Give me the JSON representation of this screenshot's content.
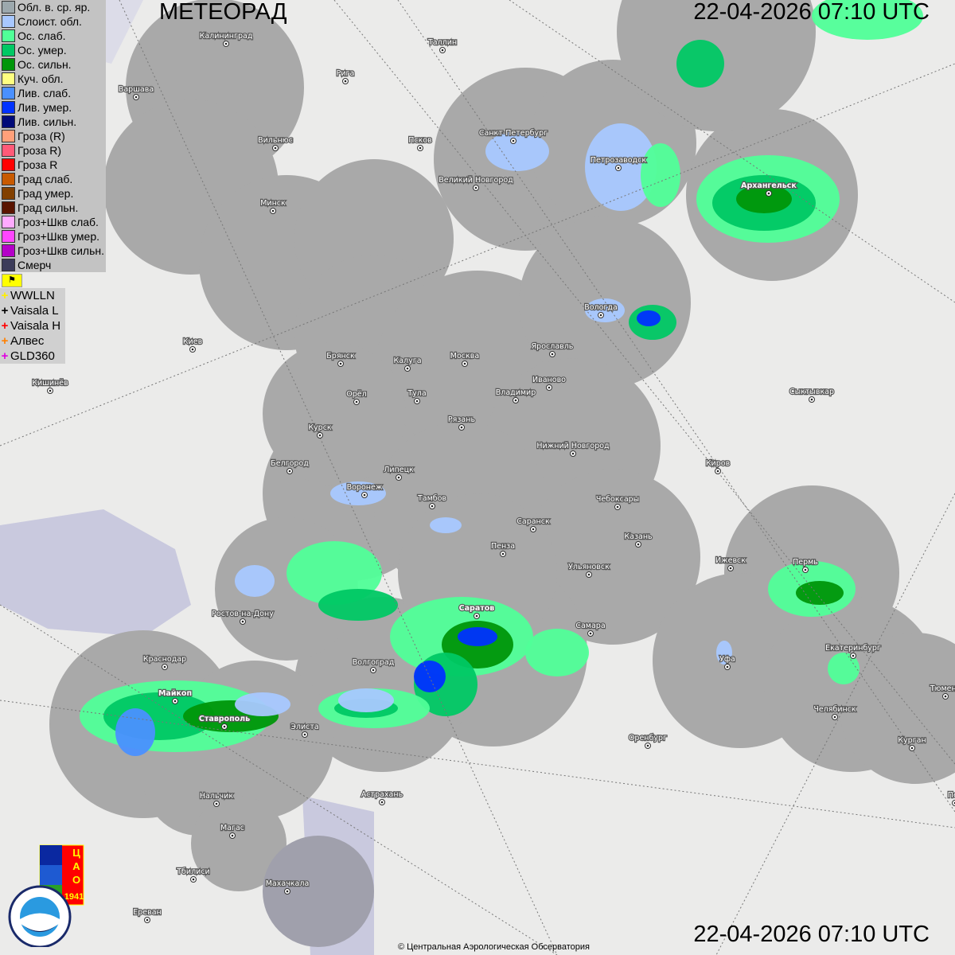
{
  "header": {
    "title": "МЕТЕОРАД",
    "timestamp_top": "22-04-2026  07:10 UTC",
    "timestamp_bottom": "22-04-2026  07:10 UTC"
  },
  "legend": {
    "items": [
      {
        "label": "Обл. в. ср. яр.",
        "color": "#9ca8ad"
      },
      {
        "label": "Слоист. обл.",
        "color": "#a8c8ff"
      },
      {
        "label": "Ос. слаб.",
        "color": "#50ff98"
      },
      {
        "label": "Ос. умер.",
        "color": "#00c864"
      },
      {
        "label": "Ос. сильн.",
        "color": "#00960a"
      },
      {
        "label": "Куч. обл.",
        "color": "#ffff80"
      },
      {
        "label": "Лив. слаб.",
        "color": "#4a90ff"
      },
      {
        "label": "Лив. умер.",
        "color": "#0032ff"
      },
      {
        "label": "Лив. сильн.",
        "color": "#000a78"
      },
      {
        "label": "Гроза (R)",
        "color": "#ffa07a"
      },
      {
        "label": "Гроза R)",
        "color": "#ff5a78"
      },
      {
        "label": "Гроза R",
        "color": "#ff0000"
      },
      {
        "label": "Град слаб.",
        "color": "#c85a00"
      },
      {
        "label": "Град умер.",
        "color": "#824000"
      },
      {
        "label": "Град сильн.",
        "color": "#5a1400"
      },
      {
        "label": "Гроз+Шкв слаб.",
        "color": "#ffaaff"
      },
      {
        "label": "Гроз+Шкв умер.",
        "color": "#ff46ff"
      },
      {
        "label": "Гроз+Шкв сильн.",
        "color": "#b400c8"
      },
      {
        "label": "Смерч",
        "color": "#3c3c5a"
      }
    ],
    "flag_button": "⚑"
  },
  "lightning": {
    "items": [
      {
        "label": "WWLLN",
        "color": "#ffee00"
      },
      {
        "label": "Vaisala L",
        "color": "#000000"
      },
      {
        "label": "Vaisala H",
        "color": "#ff0000"
      },
      {
        "label": "Алвес",
        "color": "#ff8000"
      },
      {
        "label": "GLD360",
        "color": "#e000e0"
      }
    ]
  },
  "cities": [
    {
      "name": "Калининград",
      "big": false
    },
    {
      "name": "Рига",
      "big": false
    },
    {
      "name": "Таллин",
      "big": false
    },
    {
      "name": "Варшава",
      "big": false
    },
    {
      "name": "Вильнюс",
      "big": false
    },
    {
      "name": "Псков",
      "big": false
    },
    {
      "name": "Санкт-Петербург",
      "big": false
    },
    {
      "name": "Петрозаводск",
      "big": false
    },
    {
      "name": "Архангельск",
      "big": true
    },
    {
      "name": "Великий Новгород",
      "big": false
    },
    {
      "name": "Минск",
      "big": false
    },
    {
      "name": "Вологда",
      "big": false
    },
    {
      "name": "Ярославль",
      "big": false
    },
    {
      "name": "Москва",
      "big": false
    },
    {
      "name": "Калуга",
      "big": false
    },
    {
      "name": "Брянск",
      "big": false
    },
    {
      "name": "Киев",
      "big": false
    },
    {
      "name": "Иваново",
      "big": false
    },
    {
      "name": "Владимир",
      "big": false
    },
    {
      "name": "Тула",
      "big": false
    },
    {
      "name": "Орёл",
      "big": false
    },
    {
      "name": "Кишинёв",
      "big": false
    },
    {
      "name": "Сыктывкар",
      "big": false
    },
    {
      "name": "Рязань",
      "big": false
    },
    {
      "name": "Курск",
      "big": false
    },
    {
      "name": "Нижний Новгород",
      "big": false
    },
    {
      "name": "Белгород",
      "big": false
    },
    {
      "name": "Липецк",
      "big": false
    },
    {
      "name": "Киров",
      "big": false
    },
    {
      "name": "Воронеж",
      "big": false
    },
    {
      "name": "Тамбов",
      "big": false
    },
    {
      "name": "Чебоксары",
      "big": false
    },
    {
      "name": "Саранск",
      "big": false
    },
    {
      "name": "Казань",
      "big": false
    },
    {
      "name": "Пенза",
      "big": false
    },
    {
      "name": "Ижевск",
      "big": false
    },
    {
      "name": "Пермь",
      "big": false
    },
    {
      "name": "Ульяновск",
      "big": false
    },
    {
      "name": "Ростов-на-Дону",
      "big": false
    },
    {
      "name": "Саратов",
      "big": true
    },
    {
      "name": "Самара",
      "big": false
    },
    {
      "name": "Краснодар",
      "big": false
    },
    {
      "name": "Уфа",
      "big": false
    },
    {
      "name": "Волгоград",
      "big": false
    },
    {
      "name": "Екатеринбург",
      "big": false
    },
    {
      "name": "Тюмень",
      "big": false
    },
    {
      "name": "Майкоп",
      "big": true
    },
    {
      "name": "Челябинск",
      "big": false
    },
    {
      "name": "Ставрополь",
      "big": true
    },
    {
      "name": "Элиста",
      "big": false
    },
    {
      "name": "Оренбург",
      "big": false
    },
    {
      "name": "Курган",
      "big": false
    },
    {
      "name": "Пет",
      "big": false
    },
    {
      "name": "Нальчик",
      "big": false
    },
    {
      "name": "Астрахань",
      "big": false
    },
    {
      "name": "Магас",
      "big": false
    },
    {
      "name": "Тбилиси",
      "big": false
    },
    {
      "name": "Махачкала",
      "big": false
    },
    {
      "name": "Ереван",
      "big": false
    }
  ],
  "logos": {
    "cao": "ЦАО 1941",
    "roshydromet": "РОСГИДРОМЕТ ROSHYDROMET"
  },
  "footer": {
    "copyright": "© Центральная Аэрологическая Обсерватория"
  }
}
